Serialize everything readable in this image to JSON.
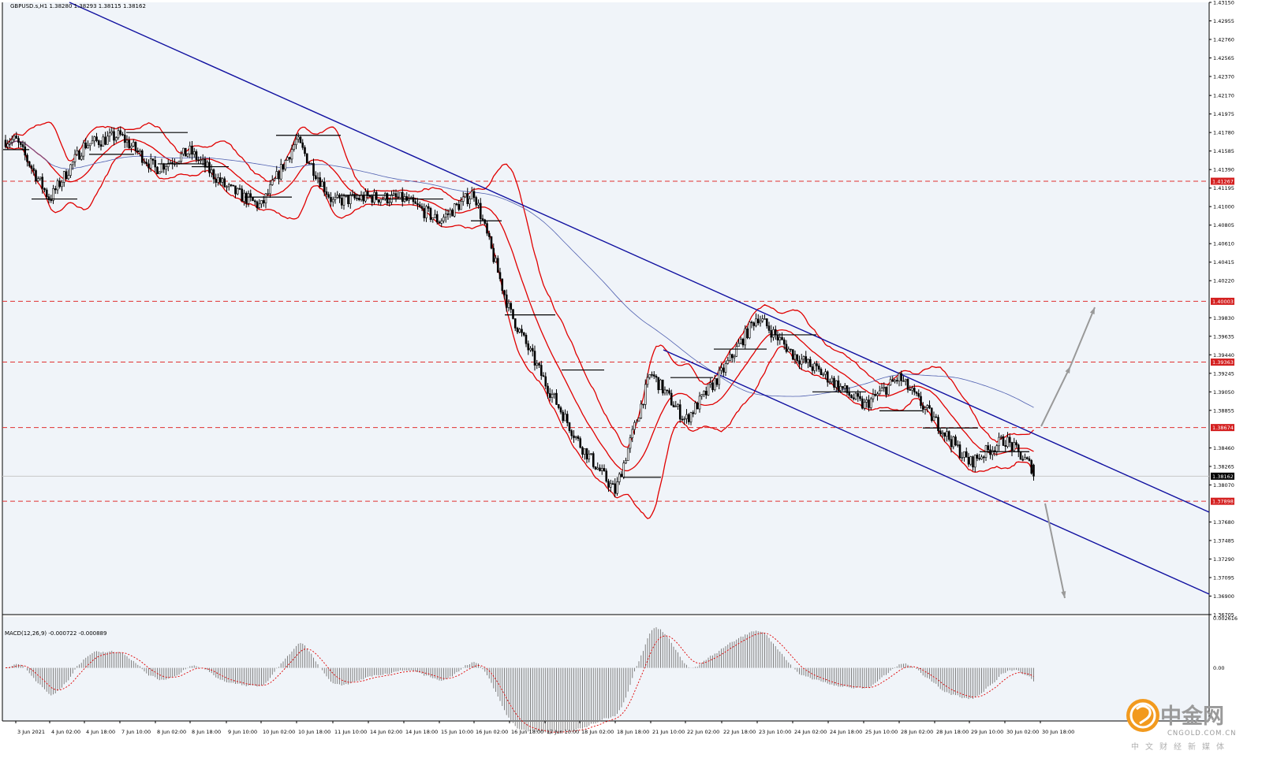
{
  "window": {
    "symbol_caption": "GBPUSD.s,H1  1.38280 1.38293 1.38115 1.38162",
    "macd_caption": "MACD(12,26,9) -0.000722 -0.000889"
  },
  "colors": {
    "background": "#f0f4f9",
    "candles": "#000000",
    "bollinger": "#e00000",
    "trendline": "#1010a0",
    "moving_average": "#5060b0",
    "level_line": "#e03030",
    "price_tag": "#d42020",
    "current_tag": "#000000",
    "arrow": "#999999",
    "macd_histogram": "#808080",
    "macd_signal": "#e00000"
  },
  "price_axis": {
    "ticks": [
      "1.43150",
      "1.42955",
      "1.42760",
      "1.42565",
      "1.42370",
      "1.42170",
      "1.41975",
      "1.41780",
      "1.41585",
      "1.41390",
      "1.41195",
      "1.41000",
      "1.40805",
      "1.40610",
      "1.40415",
      "1.40220",
      "1.39830",
      "1.39635",
      "1.39440",
      "1.39245",
      "1.39050",
      "1.38855",
      "1.38460",
      "1.38265",
      "1.38070",
      "1.37680",
      "1.37485",
      "1.37290",
      "1.37095",
      "1.36900",
      "1.36705"
    ]
  },
  "macd_axis": {
    "ticks": [
      "0.002616",
      "0.00"
    ]
  },
  "time_axis": {
    "labels": [
      "3 Jun 2021",
      "4 Jun 02:00",
      "4 Jun 18:00",
      "7 Jun 10:00",
      "8 Jun 02:00",
      "8 Jun 18:00",
      "9 Jun 10:00",
      "10 Jun 02:00",
      "10 Jun 18:00",
      "11 Jun 10:00",
      "14 Jun 02:00",
      "14 Jun 18:00",
      "15 Jun 10:00",
      "16 Jun 02:00",
      "16 Jun 18:00",
      "17 Jun 10:00",
      "18 Jun 02:00",
      "18 Jun 18:00",
      "21 Jun 10:00",
      "22 Jun 02:00",
      "22 Jun 18:00",
      "23 Jun 10:00",
      "24 Jun 02:00",
      "24 Jun 18:00",
      "25 Jun 10:00",
      "28 Jun 02:00",
      "28 Jun 18:00",
      "29 Jun 10:00",
      "30 Jun 02:00",
      "30 Jun 18:00"
    ]
  },
  "levels": [
    {
      "price": 1.41267,
      "label": "1.41267"
    },
    {
      "price": 1.40003,
      "label": "1.40003"
    },
    {
      "price": 1.39363,
      "label": "1.39363"
    },
    {
      "price": 1.38674,
      "label": "1.38674"
    },
    {
      "price": 1.37898,
      "label": "1.37898"
    }
  ],
  "current_price": {
    "price": 1.38162,
    "label": "1.38162"
  },
  "chart_data": {
    "type": "candlestick",
    "symbol": "GBPUSD.s",
    "timeframe": "H1",
    "last_bar": {
      "open": 1.3828,
      "high": 1.38293,
      "low": 1.38115,
      "close": 1.38162
    },
    "y_range": [
      1.36705,
      1.4315
    ],
    "x_range": [
      "3 Jun 2021",
      "30 Jun 18:00"
    ],
    "close_path_approx": [
      {
        "t": "3 Jun 2021",
        "close": 1.417
      },
      {
        "t": "4 Jun 02:00",
        "close": 1.4108
      },
      {
        "t": "4 Jun 18:00",
        "close": 1.4165
      },
      {
        "t": "7 Jun 10:00",
        "close": 1.4175
      },
      {
        "t": "8 Jun 02:00",
        "close": 1.414
      },
      {
        "t": "8 Jun 18:00",
        "close": 1.4158
      },
      {
        "t": "9 Jun 10:00",
        "close": 1.412
      },
      {
        "t": "10 Jun 02:00",
        "close": 1.41
      },
      {
        "t": "10 Jun 18:00",
        "close": 1.417
      },
      {
        "t": "11 Jun 10:00",
        "close": 1.4105
      },
      {
        "t": "14 Jun 02:00",
        "close": 1.411
      },
      {
        "t": "14 Jun 18:00",
        "close": 1.4108
      },
      {
        "t": "15 Jun 10:00",
        "close": 1.4085
      },
      {
        "t": "16 Jun 02:00",
        "close": 1.4115
      },
      {
        "t": "16 Jun 18:00",
        "close": 1.399
      },
      {
        "t": "17 Jun 10:00",
        "close": 1.3915
      },
      {
        "t": "18 Jun 02:00",
        "close": 1.385
      },
      {
        "t": "18 Jun 18:00",
        "close": 1.38
      },
      {
        "t": "21 Jun 10:00",
        "close": 1.3925
      },
      {
        "t": "22 Jun 02:00",
        "close": 1.3875
      },
      {
        "t": "22 Jun 18:00",
        "close": 1.3925
      },
      {
        "t": "23 Jun 10:00",
        "close": 1.3985
      },
      {
        "t": "24 Jun 02:00",
        "close": 1.3945
      },
      {
        "t": "24 Jun 18:00",
        "close": 1.392
      },
      {
        "t": "25 Jun 10:00",
        "close": 1.389
      },
      {
        "t": "28 Jun 02:00",
        "close": 1.392
      },
      {
        "t": "28 Jun 18:00",
        "close": 1.3875
      },
      {
        "t": "29 Jun 10:00",
        "close": 1.383
      },
      {
        "t": "30 Jun 02:00",
        "close": 1.3855
      },
      {
        "t": "30 Jun 18:00",
        "close": 1.38162
      }
    ],
    "macd": {
      "params": "12,26,9",
      "main": -0.000722,
      "signal": -0.000889,
      "y_range": [
        -0.00273,
        0.002616
      ]
    }
  }
}
